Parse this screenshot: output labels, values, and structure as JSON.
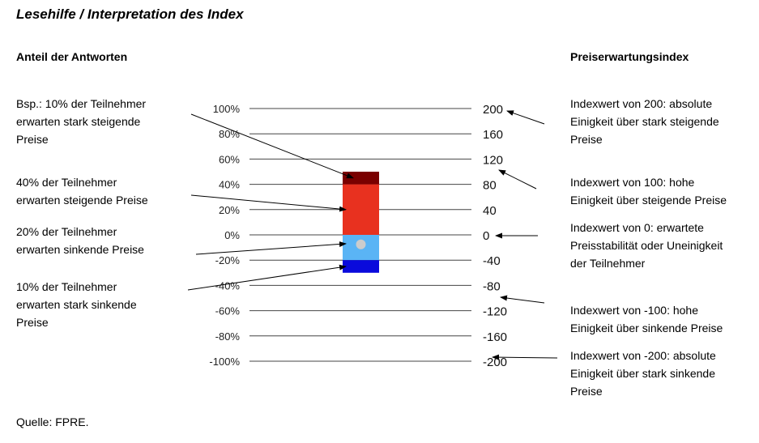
{
  "title": "Lesehilfe / Interpretation des Index",
  "left_heading": "Anteil der Antworten",
  "right_heading": "Preiserwartungsindex",
  "source": "Quelle: FPRE.",
  "left_notes": [
    "Bsp.: 10% der Teilnehmer\nerwarten stark steigende\nPreise",
    "40% der Teilnehmer\nerwarten steigende Preise",
    "20% der Teilnehmer\nerwarten sinkende Preise",
    "10% der Teilnehmer\nerwarten stark sinkende\nPreise"
  ],
  "right_notes": [
    "Indexwert von 200: absolute\nEinigkeit über stark steigende\nPreise",
    "Indexwert von 100: hohe\nEinigkeit über steigende Preise",
    "Indexwert von 0: erwartete\nPreisstabilität oder Uneinigkeit\nder Teilnehmer",
    "Indexwert von -100: hohe\nEinigkeit über sinkende Preise",
    "Indexwert von -200: absolute\nEinigkeit über stark sinkende\nPreise"
  ],
  "chart_data": {
    "type": "bar",
    "left_axis_ticks": [
      "100%",
      "80%",
      "60%",
      "40%",
      "20%",
      "0%",
      "-20%",
      "-40%",
      "-60%",
      "-80%",
      "-100%"
    ],
    "right_axis_ticks": [
      "200",
      "160",
      "120",
      "80",
      "40",
      "0",
      "-40",
      "-80",
      "-120",
      "-160",
      "-200"
    ],
    "ylim": [
      -100,
      100
    ],
    "grid": true,
    "segments": [
      {
        "label": "stark steigend",
        "from": 40,
        "to": 50,
        "color": "#7a0000"
      },
      {
        "label": "steigend",
        "from": 0,
        "to": 40,
        "color": "#e8311f"
      },
      {
        "label": "sinkend",
        "from": -20,
        "to": 0,
        "color": "#5ab4f5"
      },
      {
        "label": "stark sinkend",
        "from": -30,
        "to": -20,
        "color": "#0a0adc"
      }
    ],
    "index_value": 0,
    "index_marker_color": "#cccccc"
  }
}
